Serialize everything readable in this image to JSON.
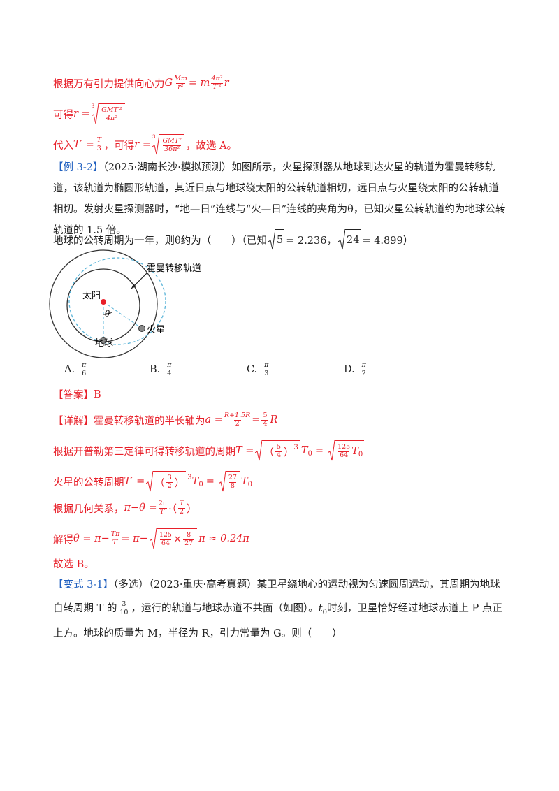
{
  "top": {
    "line1": [
      "根据万有引力提供向心力",
      "G",
      "Mm",
      "r²",
      "= m",
      "4π²",
      "T′²",
      "r"
    ],
    "line2": [
      "可得",
      "r =",
      "3",
      "GMT′²",
      "4π²"
    ],
    "line3": [
      "代入",
      "T′ =",
      "T",
      "3",
      "，可得",
      "r =",
      "3",
      "GMT²",
      "36π²",
      "，故选 A。"
    ]
  },
  "example": {
    "tag": "【例 3-2】",
    "text": "（2025·湖南长沙·模拟预测）如图所示，火星探测器从地球到达火星的轨道为霍曼转移轨道，该轨道为椭圆形轨道，其近日点与地球绕太阳的公转轨道相切，远日点与火星绕太阳的公转轨道相切。发射火星探测器时，“地—日”连线与“火—日”连线的夹角为θ，已知火星公转轨道约为地球公转轨道的 1.5 倍。",
    "question": [
      "地球的公转周期为一年，则θ约为（　　）（已知",
      "5",
      "= 2.236，",
      "24",
      "= 4.899）"
    ]
  },
  "figure": {
    "labels": [
      "霍曼转移轨道",
      "太阳",
      "θ",
      "火星",
      "地球"
    ]
  },
  "options": [
    {
      "letter": "A.",
      "num": "π",
      "den": "6"
    },
    {
      "letter": "B.",
      "num": "π",
      "den": "4"
    },
    {
      "letter": "C.",
      "num": "π",
      "den": "3"
    },
    {
      "letter": "D.",
      "num": "π",
      "den": "2"
    }
  ],
  "answer": [
    "【答案】",
    "B"
  ],
  "detail": {
    "d1": [
      "【详解】",
      "霍曼转移轨道的半长轴为",
      "a =",
      "R+1.5R",
      "2",
      "=",
      "5",
      "4",
      "R"
    ],
    "d2": [
      "根据开普勒第三定律可得转移轨道的周期",
      "T =",
      "（",
      "5",
      "4",
      "）",
      "3",
      "T",
      "0",
      "=",
      "125",
      "64",
      "T",
      "0"
    ],
    "d3": [
      "火星的公转周期",
      "T′ =",
      "（",
      "3",
      "2",
      "）",
      "3",
      "T",
      "0",
      "=",
      "27",
      "8",
      "T",
      "0"
    ],
    "d4": [
      "根据几何关系，",
      "π−θ =",
      "2π",
      "T′",
      "·（",
      "T",
      "2",
      "）"
    ],
    "d5": [
      "解得",
      "θ = π−",
      "Tπ",
      "T′",
      "= π−",
      "125",
      "64",
      "×",
      "8",
      "27",
      "π ≈ 0.24π"
    ],
    "d6": "故选 B。"
  },
  "variant": {
    "tag": "【变式 3-1】",
    "parts": [
      "（多选）（2023·重庆·高考真题）某卫星绕地心的运动视为匀速圆周运动，其周期为地球自转周期 T 的",
      "3",
      "10",
      "，运行的轨道与地球赤道不共面（如图）。",
      "t",
      "0",
      "时刻，卫星恰好经过地球赤道上 P 点正上方。地球的质量为 M，半径为 R，引力常量为 G。则（　　）"
    ]
  }
}
